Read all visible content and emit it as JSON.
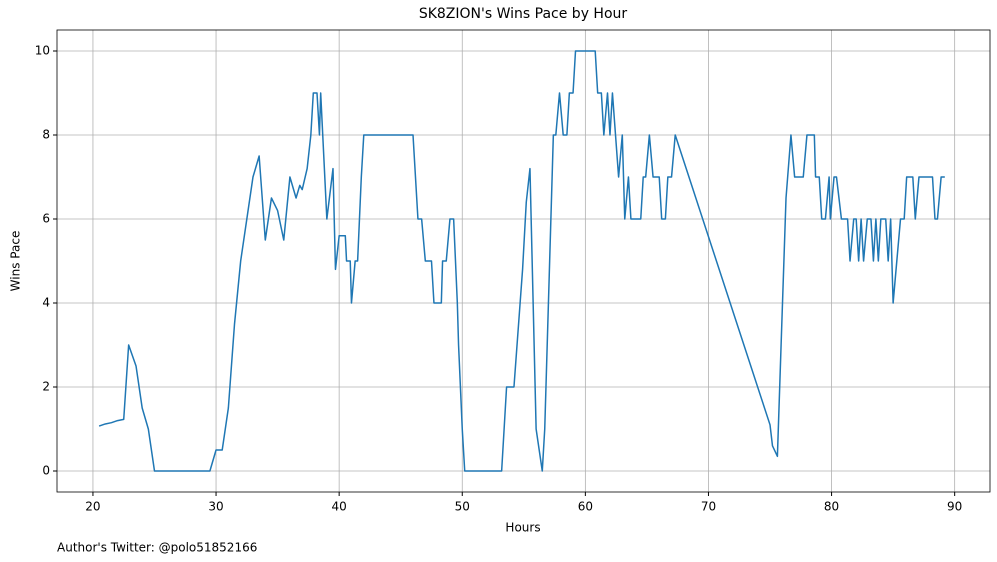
{
  "chart_data": {
    "type": "line",
    "title": "SK8ZION's Wins Pace by Hour",
    "xlabel": "Hours",
    "ylabel": "Wins Pace",
    "footnote": "Author's Twitter: @polo51852166",
    "x": [
      20.5,
      21,
      21.5,
      22,
      22.5,
      22.9,
      23.5,
      24,
      24.5,
      25,
      29.5,
      30,
      30.5,
      31,
      31.5,
      32,
      32.5,
      33,
      33.5,
      34,
      34.5,
      35,
      35.5,
      36,
      36.5,
      36.8,
      37,
      37.4,
      37.7,
      37.9,
      38.2,
      38.4,
      38.5,
      39,
      39.5,
      39.7,
      40,
      40.5,
      40.6,
      40.9,
      41,
      41.3,
      41.5,
      41.8,
      42,
      46,
      46.4,
      46.7,
      47,
      47.5,
      47.7,
      48.3,
      48.4,
      48.7,
      49,
      49.3,
      49.6,
      49.7,
      50,
      50.2,
      53.2,
      53.6,
      54.2,
      54.7,
      54.9,
      55.2,
      55.5,
      56,
      56.5,
      56.7,
      57.1,
      57.4,
      57.6,
      57.9,
      58.2,
      58.5,
      58.7,
      59,
      59.2,
      60.8,
      61,
      61.3,
      61.5,
      61.8,
      62,
      62.2,
      62.7,
      63,
      63.2,
      63.5,
      63.7,
      64.5,
      64.7,
      64.9,
      65.2,
      65.5,
      66,
      66.2,
      66.5,
      66.7,
      67,
      67.3,
      75,
      75.2,
      75.6,
      75.9,
      76.3,
      76.7,
      77,
      77.7,
      78,
      78.6,
      78.7,
      79,
      79.2,
      79.5,
      79.8,
      79.9,
      80.2,
      80.4,
      80.8,
      81.3,
      81.5,
      81.8,
      82,
      82.2,
      82.4,
      82.6,
      82.9,
      83.2,
      83.4,
      83.6,
      83.8,
      84,
      84.4,
      84.6,
      84.8,
      85,
      85.3,
      85.6,
      85.9,
      86.1,
      86.6,
      86.8,
      87.1,
      88.2,
      88.4,
      88.6,
      88.9,
      89.2
    ],
    "series": [
      {
        "name": "Wins Pace",
        "color": "#1f77b4",
        "values": [
          1.07,
          1.12,
          1.15,
          1.2,
          1.23,
          3,
          2.5,
          1.5,
          1,
          0,
          0,
          0.5,
          0.5,
          1.5,
          3.5,
          5,
          6,
          7,
          7.5,
          5.5,
          6.5,
          6.2,
          5.5,
          7,
          6.5,
          6.8,
          6.7,
          7.2,
          8,
          9,
          9,
          8,
          9,
          6,
          7.2,
          4.8,
          5.6,
          5.6,
          5,
          5,
          4,
          5,
          5,
          7,
          8,
          8,
          6,
          6,
          5,
          5,
          4,
          4,
          5,
          5,
          6,
          6,
          4,
          3,
          1,
          0,
          0,
          2,
          2,
          4,
          4.8,
          6.4,
          7.2,
          1,
          0,
          1,
          5,
          8,
          8,
          9,
          8,
          8,
          9,
          9,
          10,
          10,
          9,
          9,
          8,
          9,
          8,
          9,
          7,
          8,
          6,
          7,
          6,
          6,
          7,
          7,
          8,
          7,
          7,
          6,
          6,
          7,
          7,
          8,
          1.1,
          0.6,
          0.35,
          3,
          6.5,
          8,
          7,
          7,
          8,
          8,
          7,
          7,
          6,
          6,
          7,
          6,
          7,
          7,
          6,
          6,
          5,
          6,
          6,
          5,
          6,
          5,
          6,
          6,
          5,
          6,
          5,
          6,
          6,
          5,
          6,
          4,
          5,
          6,
          6,
          7,
          7,
          6,
          7,
          7,
          6,
          6,
          7,
          7
        ]
      }
    ],
    "xlim": [
      17.08,
      92.87
    ],
    "ylim": [
      -0.5,
      10.5
    ],
    "xticks": [
      20,
      30,
      40,
      50,
      60,
      70,
      80,
      90
    ],
    "yticks": [
      0,
      2,
      4,
      6,
      8,
      10
    ],
    "grid": true
  }
}
